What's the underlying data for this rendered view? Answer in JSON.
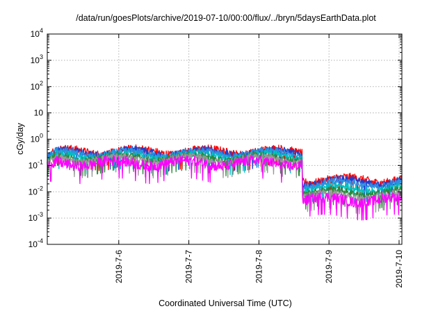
{
  "chart_data": {
    "type": "line",
    "title": "/data/run/goesPlots/archive/2019-07-10/00:00/flux/../bryn/5daysEarthData.plot",
    "xlabel": "Coordinated Universal Time (UTC)",
    "ylabel": "cGy/day",
    "yscale": "log",
    "ylim": [
      0.0001,
      10000
    ],
    "xlim": [
      4.98,
      10.04
    ],
    "y_ticks": [
      {
        "value": 0.0001,
        "base": "10",
        "exp": "-4"
      },
      {
        "value": 0.001,
        "base": "10",
        "exp": "-3"
      },
      {
        "value": 0.01,
        "base": "10",
        "exp": "-2"
      },
      {
        "value": 0.1,
        "base": "10",
        "exp": "-1"
      },
      {
        "value": 1,
        "base": "10",
        "exp": "0"
      },
      {
        "value": 10,
        "base": "10",
        "exp": ""
      },
      {
        "value": 100,
        "base": "10",
        "exp": "2"
      },
      {
        "value": 1000,
        "base": "10",
        "exp": "3"
      },
      {
        "value": 10000,
        "base": "10",
        "exp": "4"
      }
    ],
    "x_ticks": [
      {
        "value": 6,
        "label": "2019-7-6"
      },
      {
        "value": 7,
        "label": "2019-7-7"
      },
      {
        "value": 8,
        "label": "2019-7-8"
      },
      {
        "value": 9,
        "label": "2019-7-9"
      },
      {
        "value": 10,
        "label": "2019-7-10"
      }
    ],
    "grid": true,
    "series": [
      {
        "color": "#ff0000",
        "high_level": 0.36,
        "low_level": 0.03,
        "offset": 0.2,
        "amp": 0.35
      },
      {
        "color": "#1f3fd0",
        "high_level": 0.33,
        "low_level": 0.025,
        "offset": 1.1,
        "amp": 0.32
      },
      {
        "color": "#2f8fe0",
        "high_level": 0.3,
        "low_level": 0.021,
        "offset": 2.3,
        "amp": 0.3
      },
      {
        "color": "#00c0c0",
        "high_level": 0.24,
        "low_level": 0.014,
        "offset": 3.1,
        "amp": 0.3
      },
      {
        "color": "#2a8a3a",
        "high_level": 0.21,
        "low_level": 0.01,
        "offset": 4.7,
        "amp": 0.28
      },
      {
        "color": "#999999",
        "high_level": 0.18,
        "low_level": 0.0075,
        "offset": 5.5,
        "amp": 0.3
      },
      {
        "color": "#ff00ff",
        "high_level": 0.13,
        "low_level": 0.0052,
        "offset": 6.4,
        "amp": 0.45
      }
    ],
    "step_change_x": 8.62
  }
}
